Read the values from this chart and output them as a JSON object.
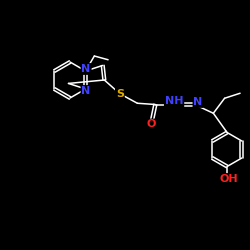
{
  "background_color": "#000000",
  "bond_color": "#ffffff",
  "atom_colors": {
    "N": "#4040ff",
    "S": "#ddaa00",
    "O": "#ff2020",
    "C": "#ffffff"
  },
  "font_size_atom": 8,
  "figsize": [
    2.5,
    2.5
  ],
  "dpi": 100
}
